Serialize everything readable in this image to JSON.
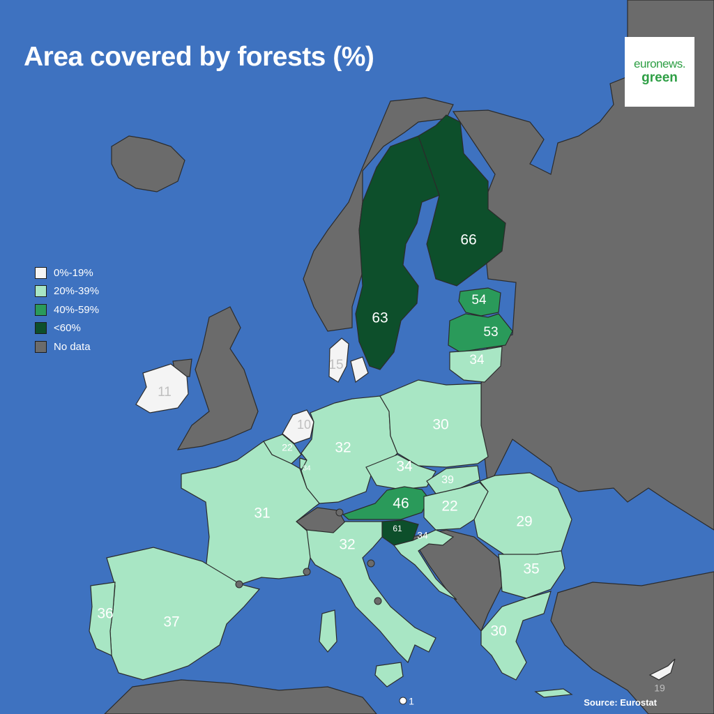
{
  "title": "Area covered by forests (%)",
  "logo": {
    "line1": "euronews.",
    "line2": "green"
  },
  "source": "Source: Eurostat",
  "colors": {
    "sea": "#3e72c0",
    "nodata": "#6b6b6b",
    "band_0_19": "#f4f4f4",
    "band_20_39": "#a8e6c4",
    "band_40_59": "#2a9a5a",
    "band_60_plus": "#0d4f2b",
    "border": "#2b2b2b"
  },
  "legend": [
    {
      "label": "0%-19%",
      "color": "#f4f4f4"
    },
    {
      "label": "20%-39%",
      "color": "#a8e6c4"
    },
    {
      "label": "40%-59%",
      "color": "#2a9a5a"
    },
    {
      "label": "<60%",
      "color": "#0d4f2b"
    },
    {
      "label": "No data",
      "color": "#6b6b6b"
    }
  ],
  "countries": [
    {
      "name": "Finland",
      "value": "66"
    },
    {
      "name": "Sweden",
      "value": "63"
    },
    {
      "name": "Estonia",
      "value": "54"
    },
    {
      "name": "Latvia",
      "value": "53"
    },
    {
      "name": "Lithuania",
      "value": "34"
    },
    {
      "name": "Denmark",
      "value": "15"
    },
    {
      "name": "Ireland",
      "value": "11"
    },
    {
      "name": "Netherlands",
      "value": "10"
    },
    {
      "name": "Belgium",
      "value": "22"
    },
    {
      "name": "Luxembourg",
      "value": "34"
    },
    {
      "name": "Germany",
      "value": "32"
    },
    {
      "name": "Poland",
      "value": "30"
    },
    {
      "name": "Czechia",
      "value": "34"
    },
    {
      "name": "Slovakia",
      "value": "39"
    },
    {
      "name": "Austria",
      "value": "46"
    },
    {
      "name": "Hungary",
      "value": "22"
    },
    {
      "name": "Slovenia",
      "value": "61"
    },
    {
      "name": "Croatia",
      "value": "34"
    },
    {
      "name": "Romania",
      "value": "29"
    },
    {
      "name": "Bulgaria",
      "value": "35"
    },
    {
      "name": "France",
      "value": "31"
    },
    {
      "name": "Italy",
      "value": "32"
    },
    {
      "name": "Spain",
      "value": "37"
    },
    {
      "name": "Portugal",
      "value": "36"
    },
    {
      "name": "Greece",
      "value": "30"
    },
    {
      "name": "Cyprus",
      "value": "19"
    },
    {
      "name": "Malta",
      "value": "1"
    }
  ]
}
